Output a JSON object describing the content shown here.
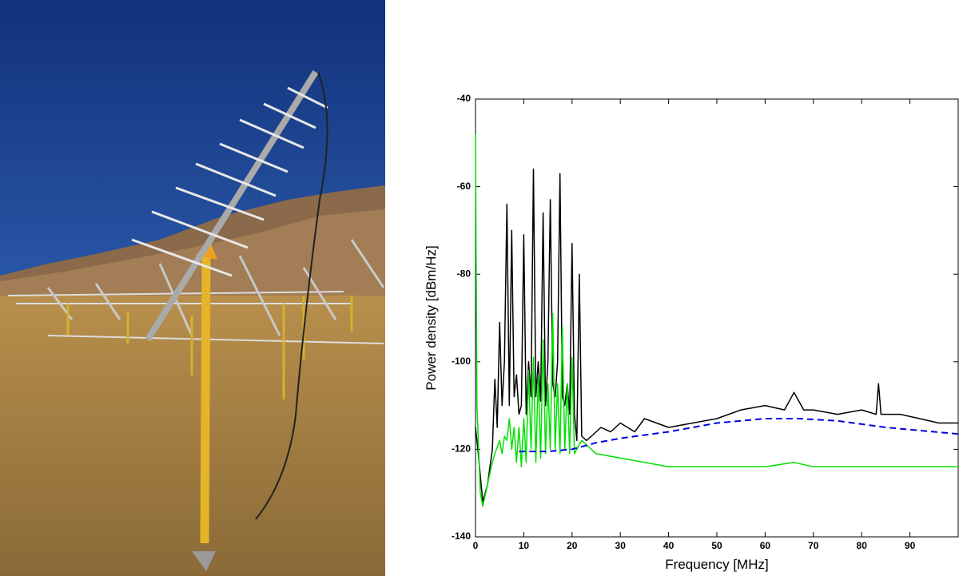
{
  "chart_data": {
    "type": "line",
    "x_label": "Frequency [MHz]",
    "y_label": "Power density [dBm/Hz]",
    "xlim": [
      0,
      100
    ],
    "ylim": [
      -140,
      -40
    ],
    "xticks": [
      0,
      10,
      20,
      30,
      40,
      50,
      60,
      70,
      80,
      90
    ],
    "yticks": [
      -140,
      -120,
      -100,
      -80,
      -60,
      -40
    ],
    "series": [
      {
        "color": "#000000",
        "dash": false,
        "x": [
          0,
          0.5,
          1.5,
          2.5,
          3.5,
          4,
          4.5,
          5,
          5.5,
          6,
          6.5,
          7,
          7.5,
          8,
          8.5,
          9,
          9.5,
          10,
          10.5,
          11,
          11.5,
          12,
          12.5,
          13,
          13.5,
          14,
          14.5,
          15,
          15.5,
          16,
          16.5,
          17,
          17.5,
          18,
          18.5,
          19,
          19.5,
          20,
          20.5,
          21,
          21.5,
          22,
          23,
          24,
          26,
          28,
          30,
          33,
          35,
          40,
          45,
          50,
          55,
          60,
          64,
          66,
          68,
          70,
          75,
          80,
          83,
          83.5,
          84,
          88,
          92,
          96,
          100
        ],
        "values": [
          -115,
          -120,
          -132,
          -128,
          -120,
          -104,
          -115,
          -91,
          -110,
          -100,
          -64,
          -110,
          -70,
          -108,
          -103,
          -112,
          -110,
          -71,
          -112,
          -100,
          -108,
          -56,
          -108,
          -100,
          -109,
          -66,
          -110,
          -100,
          -63,
          -105,
          -108,
          -100,
          -57,
          -108,
          -110,
          -105,
          -112,
          -73,
          -112,
          -118,
          -80,
          -117,
          -118,
          -117,
          -115,
          -116,
          -114,
          -116,
          -113,
          -115,
          -114,
          -113,
          -111,
          -110,
          -111,
          -107,
          -111,
          -111,
          -112,
          -111,
          -112,
          -105,
          -112,
          -112,
          -113,
          -114,
          -114
        ]
      },
      {
        "color": "#00e000",
        "dash": false,
        "x": [
          0,
          0.3,
          1,
          1.5,
          2.5,
          3.5,
          4,
          5,
          5.5,
          6,
          6.5,
          7,
          7.5,
          8,
          8.5,
          9,
          9.5,
          10,
          10.5,
          11,
          11.5,
          12,
          12.5,
          13,
          13.5,
          14,
          14.5,
          15,
          15.5,
          16,
          16.5,
          17,
          17.5,
          18,
          18.5,
          19,
          19.5,
          20,
          20.5,
          21,
          22,
          25,
          30,
          35,
          40,
          50,
          60,
          66,
          70,
          80,
          90,
          100
        ],
        "values": [
          -48,
          -110,
          -130,
          -133,
          -128,
          -123,
          -121,
          -118,
          -121,
          -117,
          -118,
          -113,
          -120,
          -115,
          -123,
          -115,
          -124,
          -113,
          -123,
          -102,
          -120,
          -99,
          -123,
          -103,
          -122,
          -95,
          -121,
          -105,
          -120,
          -89,
          -120,
          -105,
          -121,
          -92,
          -120,
          -105,
          -121,
          -99,
          -121,
          -120,
          -118,
          -121,
          -122,
          -123,
          -124,
          -124,
          -124,
          -123,
          -124,
          -124,
          -124,
          -124
        ]
      },
      {
        "color": "#0000dd",
        "dash": true,
        "x": [
          9,
          15,
          20,
          25,
          30,
          40,
          50,
          60,
          67,
          75,
          85,
          95,
          100
        ],
        "values": [
          -120.5,
          -120.5,
          -120,
          -118.5,
          -117.5,
          -116,
          -114,
          -113,
          -113,
          -113.5,
          -115,
          -116,
          -116.5
        ]
      }
    ]
  }
}
